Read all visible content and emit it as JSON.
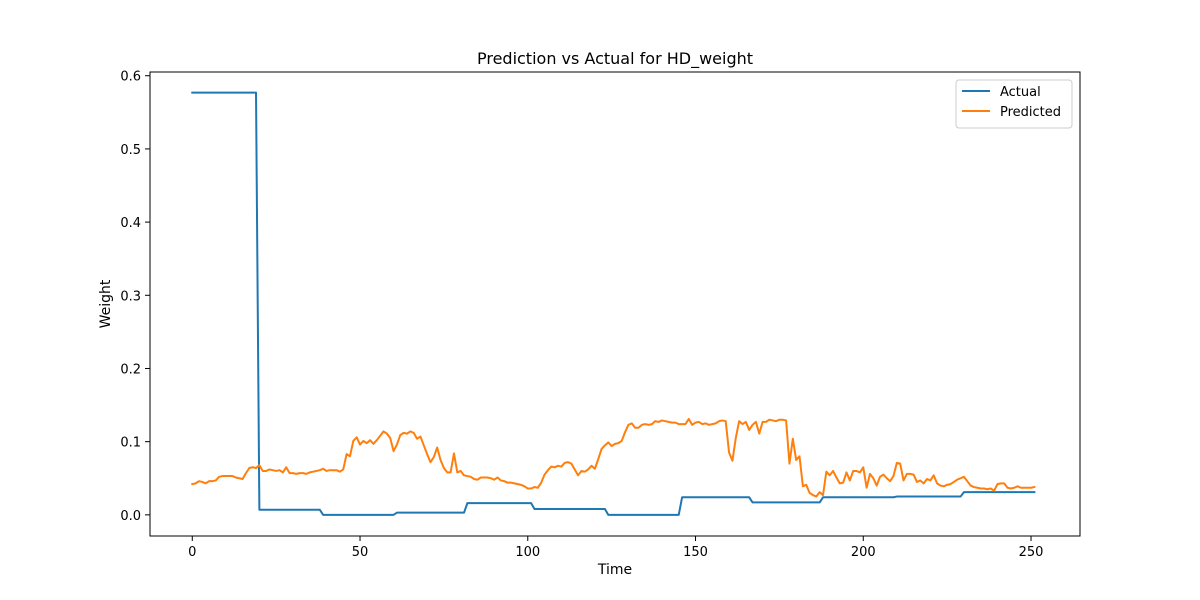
{
  "chart_data": {
    "type": "line",
    "title": "Prediction vs Actual for HD_weight",
    "xlabel": "Time",
    "ylabel": "Weight",
    "xlim": [
      -12.6,
      264.6
    ],
    "ylim": [
      -0.0289,
      0.6051
    ],
    "xticks": [
      0,
      50,
      100,
      150,
      200,
      250
    ],
    "yticks": [
      0.0,
      0.1,
      0.2,
      0.3,
      0.4,
      0.5,
      0.6
    ],
    "ytick_labels": [
      "0.0",
      "0.1",
      "0.2",
      "0.3",
      "0.4",
      "0.5",
      "0.6"
    ],
    "grid": false,
    "legend_position": "upper-right",
    "series": [
      {
        "name": "Actual",
        "color": "#1f77b4",
        "points": [
          [
            0,
            0.577
          ],
          [
            19,
            0.577
          ],
          [
            20,
            0.007
          ],
          [
            38,
            0.007
          ],
          [
            39,
            0.0
          ],
          [
            60,
            0.0
          ],
          [
            61,
            0.003
          ],
          [
            81,
            0.003
          ],
          [
            82,
            0.016
          ],
          [
            101,
            0.016
          ],
          [
            102,
            0.008
          ],
          [
            123,
            0.008
          ],
          [
            124,
            0.0
          ],
          [
            145,
            0.0
          ],
          [
            146,
            0.024
          ],
          [
            166,
            0.024
          ],
          [
            167,
            0.017
          ],
          [
            187,
            0.017
          ],
          [
            188,
            0.024
          ],
          [
            209,
            0.024
          ],
          [
            210,
            0.025
          ],
          [
            229,
            0.025
          ],
          [
            230,
            0.031
          ],
          [
            251,
            0.031
          ]
        ]
      },
      {
        "name": "Predicted",
        "color": "#ff7f0e",
        "points": [
          [
            0,
            0.042
          ],
          [
            1,
            0.043
          ],
          [
            2,
            0.046
          ],
          [
            3,
            0.045
          ],
          [
            4,
            0.043
          ],
          [
            5,
            0.046
          ],
          [
            6,
            0.046
          ],
          [
            7,
            0.047
          ],
          [
            8,
            0.052
          ],
          [
            9,
            0.053
          ],
          [
            10,
            0.053
          ],
          [
            11,
            0.053
          ],
          [
            12,
            0.053
          ],
          [
            13,
            0.051
          ],
          [
            14,
            0.05
          ],
          [
            15,
            0.049
          ],
          [
            16,
            0.057
          ],
          [
            17,
            0.064
          ],
          [
            18,
            0.065
          ],
          [
            19,
            0.064
          ],
          [
            20,
            0.068
          ],
          [
            21,
            0.06
          ],
          [
            22,
            0.06
          ],
          [
            23,
            0.062
          ],
          [
            24,
            0.061
          ],
          [
            25,
            0.06
          ],
          [
            26,
            0.061
          ],
          [
            27,
            0.058
          ],
          [
            28,
            0.065
          ],
          [
            29,
            0.057
          ],
          [
            30,
            0.057
          ],
          [
            31,
            0.056
          ],
          [
            32,
            0.057
          ],
          [
            33,
            0.057
          ],
          [
            34,
            0.056
          ],
          [
            35,
            0.058
          ],
          [
            36,
            0.059
          ],
          [
            37,
            0.06
          ],
          [
            38,
            0.061
          ],
          [
            39,
            0.063
          ],
          [
            40,
            0.06
          ],
          [
            41,
            0.061
          ],
          [
            42,
            0.061
          ],
          [
            43,
            0.061
          ],
          [
            44,
            0.059
          ],
          [
            45,
            0.062
          ],
          [
            46,
            0.083
          ],
          [
            47,
            0.08
          ],
          [
            48,
            0.101
          ],
          [
            49,
            0.106
          ],
          [
            50,
            0.096
          ],
          [
            51,
            0.101
          ],
          [
            52,
            0.098
          ],
          [
            53,
            0.102
          ],
          [
            54,
            0.097
          ],
          [
            55,
            0.102
          ],
          [
            56,
            0.108
          ],
          [
            57,
            0.114
          ],
          [
            58,
            0.111
          ],
          [
            59,
            0.105
          ],
          [
            60,
            0.087
          ],
          [
            61,
            0.096
          ],
          [
            62,
            0.109
          ],
          [
            63,
            0.112
          ],
          [
            64,
            0.111
          ],
          [
            65,
            0.114
          ],
          [
            66,
            0.112
          ],
          [
            67,
            0.104
          ],
          [
            68,
            0.107
          ],
          [
            69,
            0.095
          ],
          [
            70,
            0.083
          ],
          [
            71,
            0.072
          ],
          [
            72,
            0.079
          ],
          [
            73,
            0.092
          ],
          [
            74,
            0.075
          ],
          [
            75,
            0.064
          ],
          [
            76,
            0.058
          ],
          [
            77,
            0.058
          ],
          [
            78,
            0.084
          ],
          [
            79,
            0.058
          ],
          [
            80,
            0.06
          ],
          [
            81,
            0.054
          ],
          [
            82,
            0.053
          ],
          [
            83,
            0.052
          ],
          [
            84,
            0.049
          ],
          [
            85,
            0.048
          ],
          [
            86,
            0.051
          ],
          [
            87,
            0.051
          ],
          [
            88,
            0.051
          ],
          [
            89,
            0.05
          ],
          [
            90,
            0.048
          ],
          [
            91,
            0.051
          ],
          [
            92,
            0.047
          ],
          [
            93,
            0.046
          ],
          [
            94,
            0.044
          ],
          [
            95,
            0.044
          ],
          [
            96,
            0.043
          ],
          [
            97,
            0.042
          ],
          [
            98,
            0.041
          ],
          [
            99,
            0.039
          ],
          [
            100,
            0.036
          ],
          [
            101,
            0.036
          ],
          [
            102,
            0.038
          ],
          [
            103,
            0.037
          ],
          [
            104,
            0.044
          ],
          [
            105,
            0.055
          ],
          [
            106,
            0.061
          ],
          [
            107,
            0.066
          ],
          [
            108,
            0.065
          ],
          [
            109,
            0.067
          ],
          [
            110,
            0.066
          ],
          [
            111,
            0.071
          ],
          [
            112,
            0.072
          ],
          [
            113,
            0.07
          ],
          [
            114,
            0.062
          ],
          [
            115,
            0.054
          ],
          [
            116,
            0.06
          ],
          [
            117,
            0.059
          ],
          [
            118,
            0.062
          ],
          [
            119,
            0.067
          ],
          [
            120,
            0.063
          ],
          [
            121,
            0.076
          ],
          [
            122,
            0.09
          ],
          [
            123,
            0.095
          ],
          [
            124,
            0.099
          ],
          [
            125,
            0.094
          ],
          [
            126,
            0.097
          ],
          [
            127,
            0.098
          ],
          [
            128,
            0.101
          ],
          [
            129,
            0.113
          ],
          [
            130,
            0.123
          ],
          [
            131,
            0.125
          ],
          [
            132,
            0.119
          ],
          [
            133,
            0.119
          ],
          [
            134,
            0.123
          ],
          [
            135,
            0.124
          ],
          [
            136,
            0.123
          ],
          [
            137,
            0.124
          ],
          [
            138,
            0.128
          ],
          [
            139,
            0.127
          ],
          [
            140,
            0.129
          ],
          [
            141,
            0.128
          ],
          [
            142,
            0.127
          ],
          [
            143,
            0.126
          ],
          [
            144,
            0.126
          ],
          [
            145,
            0.124
          ],
          [
            146,
            0.124
          ],
          [
            147,
            0.124
          ],
          [
            148,
            0.131
          ],
          [
            149,
            0.123
          ],
          [
            150,
            0.126
          ],
          [
            151,
            0.127
          ],
          [
            152,
            0.124
          ],
          [
            153,
            0.125
          ],
          [
            154,
            0.123
          ],
          [
            155,
            0.124
          ],
          [
            156,
            0.125
          ],
          [
            157,
            0.128
          ],
          [
            158,
            0.129
          ],
          [
            159,
            0.128
          ],
          [
            160,
            0.085
          ],
          [
            161,
            0.074
          ],
          [
            162,
            0.105
          ],
          [
            163,
            0.128
          ],
          [
            164,
            0.124
          ],
          [
            165,
            0.127
          ],
          [
            166,
            0.116
          ],
          [
            167,
            0.123
          ],
          [
            168,
            0.127
          ],
          [
            169,
            0.111
          ],
          [
            170,
            0.127
          ],
          [
            171,
            0.127
          ],
          [
            172,
            0.13
          ],
          [
            173,
            0.129
          ],
          [
            174,
            0.128
          ],
          [
            175,
            0.13
          ],
          [
            176,
            0.13
          ],
          [
            177,
            0.129
          ],
          [
            178,
            0.07
          ],
          [
            179,
            0.104
          ],
          [
            180,
            0.075
          ],
          [
            181,
            0.08
          ],
          [
            182,
            0.039
          ],
          [
            183,
            0.041
          ],
          [
            184,
            0.03
          ],
          [
            185,
            0.027
          ],
          [
            186,
            0.025
          ],
          [
            187,
            0.031
          ],
          [
            188,
            0.027
          ],
          [
            189,
            0.059
          ],
          [
            190,
            0.054
          ],
          [
            191,
            0.06
          ],
          [
            192,
            0.051
          ],
          [
            193,
            0.043
          ],
          [
            194,
            0.044
          ],
          [
            195,
            0.058
          ],
          [
            196,
            0.047
          ],
          [
            197,
            0.06
          ],
          [
            198,
            0.06
          ],
          [
            199,
            0.058
          ],
          [
            200,
            0.065
          ],
          [
            201,
            0.037
          ],
          [
            202,
            0.056
          ],
          [
            203,
            0.05
          ],
          [
            204,
            0.04
          ],
          [
            205,
            0.052
          ],
          [
            206,
            0.055
          ],
          [
            207,
            0.05
          ],
          [
            208,
            0.046
          ],
          [
            209,
            0.053
          ],
          [
            210,
            0.071
          ],
          [
            211,
            0.07
          ],
          [
            212,
            0.047
          ],
          [
            213,
            0.056
          ],
          [
            214,
            0.056
          ],
          [
            215,
            0.055
          ],
          [
            216,
            0.045
          ],
          [
            217,
            0.047
          ],
          [
            218,
            0.043
          ],
          [
            219,
            0.049
          ],
          [
            220,
            0.047
          ],
          [
            221,
            0.054
          ],
          [
            222,
            0.043
          ],
          [
            223,
            0.04
          ],
          [
            224,
            0.039
          ],
          [
            225,
            0.041
          ],
          [
            226,
            0.042
          ],
          [
            227,
            0.045
          ],
          [
            228,
            0.048
          ],
          [
            229,
            0.05
          ],
          [
            230,
            0.052
          ],
          [
            231,
            0.046
          ],
          [
            232,
            0.04
          ],
          [
            233,
            0.038
          ],
          [
            234,
            0.037
          ],
          [
            235,
            0.036
          ],
          [
            236,
            0.036
          ],
          [
            237,
            0.035
          ],
          [
            238,
            0.036
          ],
          [
            239,
            0.033
          ],
          [
            240,
            0.042
          ],
          [
            241,
            0.043
          ],
          [
            242,
            0.043
          ],
          [
            243,
            0.037
          ],
          [
            244,
            0.036
          ],
          [
            245,
            0.037
          ],
          [
            246,
            0.039
          ],
          [
            247,
            0.037
          ],
          [
            248,
            0.037
          ],
          [
            249,
            0.037
          ],
          [
            250,
            0.037
          ],
          [
            251,
            0.038
          ]
        ]
      }
    ]
  }
}
